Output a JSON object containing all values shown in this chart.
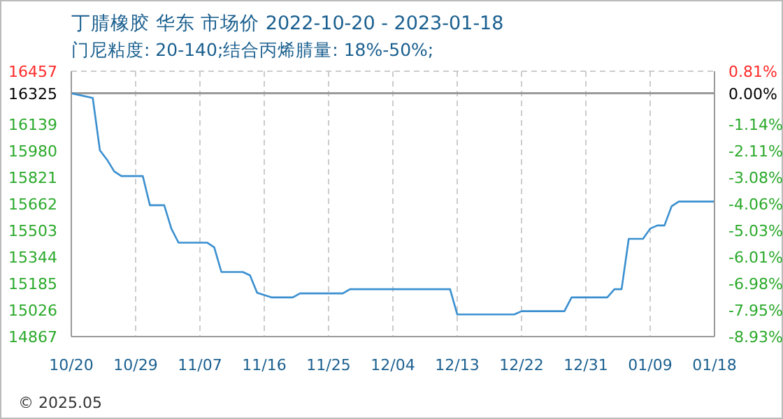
{
  "chart_data": {
    "type": "line",
    "title": "丁腈橡胶 华东 市场价 2022-10-20 - 2023-01-18",
    "subtitle": "门尼粘度: 20-140;结合丙烯腈量: 18%-50%;",
    "x": [
      "2022-10-20",
      "2022-10-23",
      "2022-10-24",
      "2022-10-25",
      "2022-10-26",
      "2022-10-27",
      "2022-10-30",
      "2022-10-31",
      "2022-11-02",
      "2022-11-03",
      "2022-11-04",
      "2022-11-08",
      "2022-11-09",
      "2022-11-10",
      "2022-11-13",
      "2022-11-14",
      "2022-11-15",
      "2022-11-17",
      "2022-11-20",
      "2022-11-21",
      "2022-11-27",
      "2022-11-28",
      "2022-12-12",
      "2022-12-13",
      "2022-12-21",
      "2022-12-22",
      "2022-12-28",
      "2022-12-29",
      "2023-01-03",
      "2023-01-04",
      "2023-01-05",
      "2023-01-06",
      "2023-01-08",
      "2023-01-09",
      "2023-01-10",
      "2023-01-11",
      "2023-01-12",
      "2023-01-13",
      "2023-01-18"
    ],
    "series": [
      {
        "color": "#3a8fd0",
        "values": [
          16325,
          16297,
          15983,
          15927,
          15857,
          15829,
          15829,
          15654,
          15654,
          15514,
          15430,
          15430,
          15402,
          15254,
          15254,
          15234,
          15130,
          15102,
          15102,
          15126,
          15126,
          15151,
          15151,
          15000,
          15000,
          15019,
          15019,
          15102,
          15102,
          15151,
          15151,
          15453,
          15453,
          15514,
          15533,
          15533,
          15648,
          15676,
          15676
        ]
      }
    ],
    "xlim": [
      "2022-10-20",
      "2023-01-18"
    ],
    "xticks": [
      {
        "value": "2022-10-20",
        "label": "10/20"
      },
      {
        "value": "2022-10-29",
        "label": "10/29"
      },
      {
        "value": "2022-11-07",
        "label": "11/07"
      },
      {
        "value": "2022-11-16",
        "label": "11/16"
      },
      {
        "value": "2022-11-25",
        "label": "11/25"
      },
      {
        "value": "2022-12-04",
        "label": "12/04"
      },
      {
        "value": "2022-12-13",
        "label": "12/13"
      },
      {
        "value": "2022-12-22",
        "label": "12/22"
      },
      {
        "value": "2022-12-31",
        "label": "12/31"
      },
      {
        "value": "2023-01-09",
        "label": "01/09"
      },
      {
        "value": "2023-01-18",
        "label": "01/18"
      }
    ],
    "ylim": [
      14867,
      16457
    ],
    "yticks": [
      14867,
      15026,
      15185,
      15344,
      15503,
      15662,
      15821,
      15980,
      16139,
      16325,
      16457
    ],
    "y2lim": [
      -8.93,
      0.81
    ],
    "y2ticks": [
      {
        "value": -8.93,
        "label": "-8.93%"
      },
      {
        "value": -7.95,
        "label": "-7.95%"
      },
      {
        "value": -6.98,
        "label": "-6.98%"
      },
      {
        "value": -6.01,
        "label": "-6.01%"
      },
      {
        "value": -5.03,
        "label": "-5.03%"
      },
      {
        "value": -4.06,
        "label": "-4.06%"
      },
      {
        "value": -3.08,
        "label": "-3.08%"
      },
      {
        "value": -2.11,
        "label": "-2.11%"
      },
      {
        "value": -1.14,
        "label": "-1.14%"
      },
      {
        "value": 0,
        "label": "0.00%"
      },
      {
        "value": 0.81,
        "label": "0.81%"
      }
    ],
    "ref_lines": [
      {
        "axis": "y",
        "value": 16325,
        "color": "#999999"
      }
    ],
    "grid": true,
    "marker": "none",
    "line_style": "solid",
    "annotations": [
      "© 2025.05"
    ]
  }
}
